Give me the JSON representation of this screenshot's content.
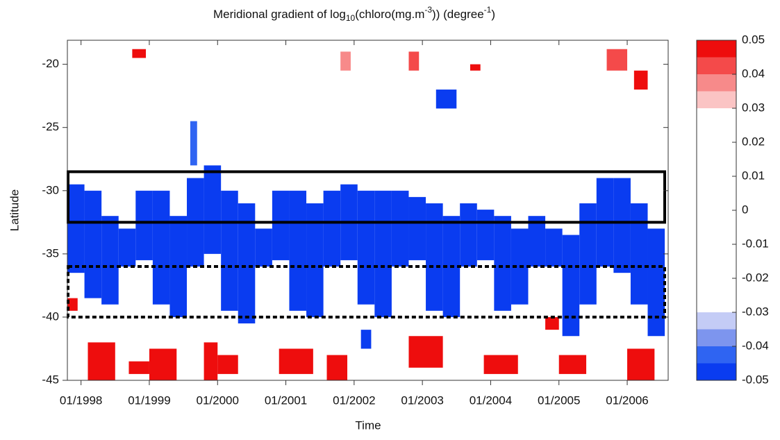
{
  "chart_data": {
    "type": "heatmap",
    "title_parts": [
      "Meridional gradient of log",
      "10",
      "(chloro(mg.m",
      "-3",
      ")) (degree",
      "-1",
      ")"
    ],
    "xlabel": "Time",
    "ylabel": "Latitude",
    "xlim": [
      1997.8,
      2006.6
    ],
    "ylim": [
      -45,
      -18.1
    ],
    "xticks": [
      {
        "value": 1998,
        "label": "01/1998"
      },
      {
        "value": 1999,
        "label": "01/1999"
      },
      {
        "value": 2000,
        "label": "01/2000"
      },
      {
        "value": 2001,
        "label": "01/2001"
      },
      {
        "value": 2002,
        "label": "01/2002"
      },
      {
        "value": 2003,
        "label": "01/2003"
      },
      {
        "value": 2004,
        "label": "01/2004"
      },
      {
        "value": 2005,
        "label": "01/2005"
      },
      {
        "value": 2006,
        "label": "01/2006"
      }
    ],
    "yticks": [
      -20,
      -25,
      -30,
      -35,
      -40,
      -45
    ],
    "colorbar": {
      "levels": [
        -0.05,
        -0.045,
        -0.04,
        -0.035,
        -0.03,
        0.03,
        0.035,
        0.04,
        0.045,
        0.05
      ],
      "colors": [
        "#0a3cf0",
        "#2f64f2",
        "#7d95ee",
        "#c4ccf6",
        "#ffffff",
        "#fbc4c4",
        "#f78a8a",
        "#f44a4a",
        "#ee0d0d"
      ],
      "ticks": [
        -0.05,
        -0.04,
        -0.03,
        -0.02,
        -0.01,
        0,
        0.01,
        0.02,
        0.03,
        0.04,
        0.05
      ]
    },
    "patches": [
      [
        1997.8,
        1998.05,
        -29.5,
        -36.5,
        -0.048
      ],
      [
        1998.05,
        1998.3,
        -30,
        -38.5,
        -0.048
      ],
      [
        1998.3,
        1998.55,
        -32,
        -39,
        -0.048
      ],
      [
        1998.55,
        1998.8,
        -33,
        -36,
        -0.048
      ],
      [
        1998.8,
        1999.05,
        -30,
        -35.5,
        -0.048
      ],
      [
        1999.05,
        1999.3,
        -30,
        -39,
        -0.048
      ],
      [
        1999.3,
        1999.55,
        -32,
        -40,
        -0.048
      ],
      [
        1999.55,
        1999.8,
        -29,
        -36,
        -0.048
      ],
      [
        1999.8,
        2000.05,
        -28,
        -35,
        -0.048
      ],
      [
        2000.05,
        2000.3,
        -30,
        -39.5,
        -0.048
      ],
      [
        2000.3,
        2000.55,
        -31,
        -40.5,
        -0.048
      ],
      [
        2000.55,
        2000.8,
        -33,
        -36,
        -0.048
      ],
      [
        2000.8,
        2001.05,
        -30,
        -35.5,
        -0.048
      ],
      [
        2001.05,
        2001.3,
        -30,
        -39.5,
        -0.048
      ],
      [
        2001.3,
        2001.55,
        -31,
        -40,
        -0.048
      ],
      [
        2001.55,
        2001.8,
        -30,
        -36,
        -0.048
      ],
      [
        2001.8,
        2002.05,
        -29.5,
        -35.5,
        -0.048
      ],
      [
        2002.05,
        2002.3,
        -30,
        -39,
        -0.048
      ],
      [
        2002.3,
        2002.55,
        -30,
        -40,
        -0.048
      ],
      [
        2002.55,
        2002.8,
        -30,
        -36,
        -0.048
      ],
      [
        2002.8,
        2003.05,
        -30.5,
        -35.5,
        -0.048
      ],
      [
        2003.05,
        2003.3,
        -31,
        -39.5,
        -0.048
      ],
      [
        2003.3,
        2003.55,
        -32,
        -40,
        -0.048
      ],
      [
        2003.55,
        2003.8,
        -31,
        -36,
        -0.048
      ],
      [
        2003.8,
        2004.05,
        -31.5,
        -35.5,
        -0.048
      ],
      [
        2004.05,
        2004.3,
        -32,
        -39.5,
        -0.048
      ],
      [
        2004.3,
        2004.55,
        -33,
        -39,
        -0.048
      ],
      [
        2004.55,
        2004.8,
        -32,
        -36,
        -0.048
      ],
      [
        2004.8,
        2005.05,
        -33,
        -36,
        -0.048
      ],
      [
        2005.05,
        2005.3,
        -33.5,
        -41.5,
        -0.048
      ],
      [
        2005.3,
        2005.55,
        -31,
        -39,
        -0.048
      ],
      [
        2005.55,
        2005.8,
        -29,
        -36,
        -0.048
      ],
      [
        2005.8,
        2006.05,
        -29,
        -36.5,
        -0.048
      ],
      [
        2006.05,
        2006.3,
        -31,
        -39,
        -0.048
      ],
      [
        2006.3,
        2006.55,
        -33,
        -41.5,
        -0.048
      ],
      [
        1999.6,
        1999.7,
        -24.5,
        -28,
        -0.042
      ],
      [
        2003.2,
        2003.5,
        -22,
        -23.5,
        -0.048
      ],
      [
        2002.1,
        2002.25,
        -41,
        -42.5,
        -0.048
      ],
      [
        1998.1,
        1998.5,
        -42,
        -45,
        0.048
      ],
      [
        1998.7,
        1999.0,
        -43.5,
        -44.5,
        0.048
      ],
      [
        1999.0,
        1999.4,
        -42.5,
        -45,
        0.048
      ],
      [
        1999.8,
        2000.0,
        -42,
        -45,
        0.048
      ],
      [
        2000.0,
        2000.3,
        -43,
        -44.5,
        0.048
      ],
      [
        2000.9,
        2001.4,
        -42.5,
        -44.5,
        0.048
      ],
      [
        2001.6,
        2001.9,
        -43,
        -45,
        0.048
      ],
      [
        2002.8,
        2003.3,
        -41.5,
        -44,
        0.048
      ],
      [
        2003.9,
        2004.4,
        -43,
        -44.5,
        0.048
      ],
      [
        2004.8,
        2005.0,
        -40,
        -41,
        0.048
      ],
      [
        2005.0,
        2005.4,
        -43,
        -44.5,
        0.048
      ],
      [
        2006.0,
        2006.4,
        -42.5,
        -45,
        0.048
      ],
      [
        1997.8,
        1997.95,
        -38.5,
        -39.5,
        0.048
      ],
      [
        1998.75,
        1998.95,
        -18.8,
        -19.5,
        0.048
      ],
      [
        2001.8,
        2001.95,
        -19,
        -20.5,
        0.038
      ],
      [
        2005.7,
        2006.0,
        -18.8,
        -20.5,
        0.042
      ],
      [
        2006.1,
        2006.3,
        -20.5,
        -22,
        0.048
      ],
      [
        2002.8,
        2002.95,
        -19,
        -20.5,
        0.042
      ],
      [
        2003.7,
        2003.85,
        -20,
        -20.5,
        0.048
      ]
    ],
    "boxes": [
      {
        "lat": [
          -28.5,
          -32.5
        ],
        "style": "solid"
      },
      {
        "lat": [
          -36,
          -40
        ],
        "style": "dashed"
      }
    ]
  }
}
